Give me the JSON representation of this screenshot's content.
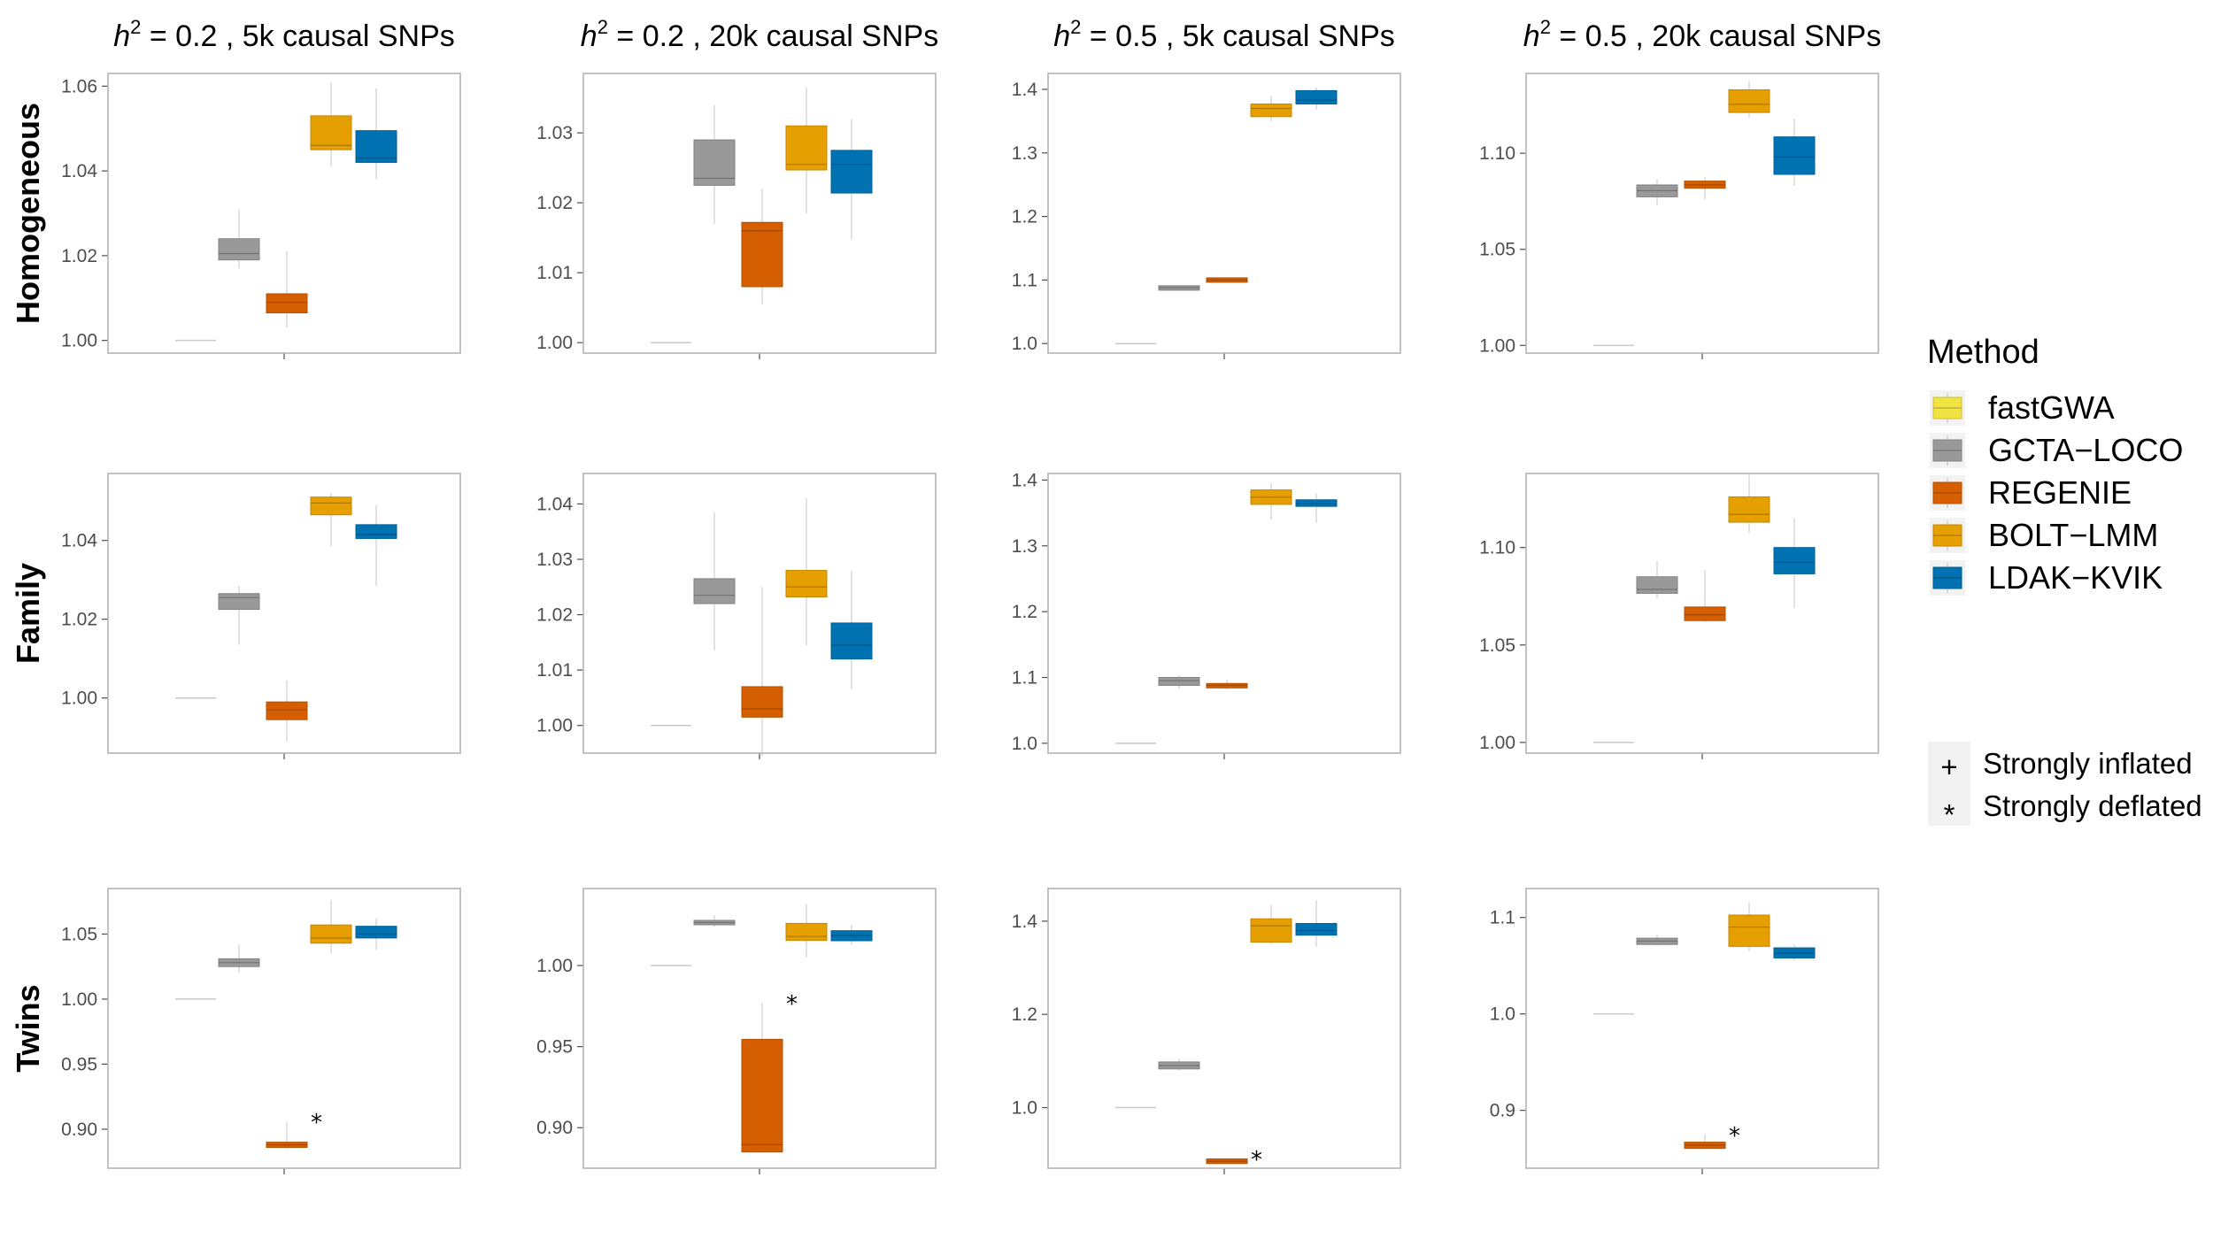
{
  "chart_data": {
    "type": "box",
    "column_titles": [
      {
        "h2": "0.2",
        "snps": "5k causal SNPs"
      },
      {
        "h2": "0.2",
        "snps": "20k causal SNPs"
      },
      {
        "h2": "0.5",
        "snps": "5k causal SNPs"
      },
      {
        "h2": "0.5",
        "snps": "20k causal SNPs"
      }
    ],
    "row_titles": [
      "Homogeneous",
      "Family",
      "Twins"
    ],
    "legend": {
      "title": "Method",
      "methods": [
        {
          "name": "fastGWA",
          "color": "#F0E442"
        },
        {
          "name": "GCTA−LOCO",
          "color": "#999999"
        },
        {
          "name": "REGENIE",
          "color": "#D55E00"
        },
        {
          "name": "BOLT−LMM",
          "color": "#E69F00"
        },
        {
          "name": "LDAK−KVIK",
          "color": "#0072B2"
        }
      ],
      "significance": [
        {
          "symbol": "+",
          "label": "Strongly inflated"
        },
        {
          "symbol": "*",
          "label": "Strongly deflated"
        }
      ]
    },
    "panels": [
      {
        "row": 0,
        "col": 0,
        "ylim": [
          0.997,
          1.063
        ],
        "ticks": [
          "1.00",
          "1.02",
          "1.04",
          "1.06"
        ],
        "boxes": [
          {
            "min": 1.0,
            "q1": 1.0,
            "median": 1.0,
            "q3": 1.0,
            "max": 1.0
          },
          {
            "min": 1.017,
            "q1": 1.019,
            "median": 1.0205,
            "q3": 1.024,
            "max": 1.031
          },
          {
            "min": 1.003,
            "q1": 1.0065,
            "median": 1.009,
            "q3": 1.011,
            "max": 1.021
          },
          {
            "min": 1.041,
            "q1": 1.045,
            "median": 1.046,
            "q3": 1.053,
            "max": 1.061
          },
          {
            "min": 1.038,
            "q1": 1.042,
            "median": 1.043,
            "q3": 1.0495,
            "max": 1.0595
          }
        ],
        "stars": []
      },
      {
        "row": 0,
        "col": 1,
        "ylim": [
          0.9985,
          1.0385
        ],
        "ticks": [
          "1.00",
          "1.01",
          "1.02",
          "1.03"
        ],
        "boxes": [
          {
            "min": 1.0,
            "q1": 1.0,
            "median": 1.0,
            "q3": 1.0,
            "max": 1.0
          },
          {
            "min": 1.017,
            "q1": 1.0225,
            "median": 1.0235,
            "q3": 1.029,
            "max": 1.034
          },
          {
            "min": 1.0055,
            "q1": 1.008,
            "median": 1.016,
            "q3": 1.0172,
            "max": 1.022
          },
          {
            "min": 1.0185,
            "q1": 1.0247,
            "median": 1.0255,
            "q3": 1.031,
            "max": 1.0365
          },
          {
            "min": 1.0148,
            "q1": 1.0214,
            "median": 1.0255,
            "q3": 1.0275,
            "max": 1.032
          }
        ],
        "stars": []
      },
      {
        "row": 0,
        "col": 2,
        "ylim": [
          0.985,
          1.425
        ],
        "ticks": [
          "1.0",
          "1.1",
          "1.2",
          "1.3",
          "1.4"
        ],
        "boxes": [
          {
            "min": 1.0,
            "q1": 1.0,
            "median": 1.0,
            "q3": 1.0,
            "max": 1.0
          },
          {
            "min": 1.085,
            "q1": 1.086,
            "median": 1.088,
            "q3": 1.089,
            "max": 1.09
          },
          {
            "min": 1.097,
            "q1": 1.098,
            "median": 1.1,
            "q3": 1.102,
            "max": 1.104
          },
          {
            "min": 1.35,
            "q1": 1.357,
            "median": 1.37,
            "q3": 1.377,
            "max": 1.39
          },
          {
            "min": 1.368,
            "q1": 1.377,
            "median": 1.383,
            "q3": 1.398,
            "max": 1.403
          }
        ],
        "stars": []
      },
      {
        "row": 0,
        "col": 3,
        "ylim": [
          0.996,
          1.1415
        ],
        "ticks": [
          "1.00",
          "1.05",
          "1.10"
        ],
        "boxes": [
          {
            "min": 1.0,
            "q1": 1.0,
            "median": 1.0,
            "q3": 1.0,
            "max": 1.0
          },
          {
            "min": 1.073,
            "q1": 1.0773,
            "median": 1.0805,
            "q3": 1.0835,
            "max": 1.0865
          },
          {
            "min": 1.076,
            "q1": 1.0818,
            "median": 1.0835,
            "q3": 1.0855,
            "max": 1.0875
          },
          {
            "min": 1.1185,
            "q1": 1.1212,
            "median": 1.1255,
            "q3": 1.133,
            "max": 1.1375
          },
          {
            "min": 1.083,
            "q1": 1.089,
            "median": 1.098,
            "q3": 1.1085,
            "max": 1.118
          }
        ],
        "stars": []
      },
      {
        "row": 1,
        "col": 0,
        "ylim": [
          0.986,
          1.057
        ],
        "ticks": [
          "1.00",
          "1.02",
          "1.04"
        ],
        "boxes": [
          {
            "min": 1.0,
            "q1": 1.0,
            "median": 1.0,
            "q3": 1.0,
            "max": 1.0
          },
          {
            "min": 1.0135,
            "q1": 1.0225,
            "median": 1.0255,
            "q3": 1.0265,
            "max": 1.0285
          },
          {
            "min": 0.989,
            "q1": 0.9945,
            "median": 0.997,
            "q3": 0.999,
            "max": 1.0045
          },
          {
            "min": 1.0385,
            "q1": 1.0465,
            "median": 1.0495,
            "q3": 1.051,
            "max": 1.052
          },
          {
            "min": 1.0285,
            "q1": 1.0405,
            "median": 1.0415,
            "q3": 1.044,
            "max": 1.049
          }
        ],
        "stars": []
      },
      {
        "row": 1,
        "col": 1,
        "ylim": [
          0.995,
          1.0455
        ],
        "ticks": [
          "1.00",
          "1.01",
          "1.02",
          "1.03",
          "1.04"
        ],
        "boxes": [
          {
            "min": 1.0,
            "q1": 1.0,
            "median": 1.0,
            "q3": 1.0,
            "max": 1.0
          },
          {
            "min": 1.0135,
            "q1": 1.022,
            "median": 1.0235,
            "q3": 1.0265,
            "max": 1.0385
          },
          {
            "min": 0.9945,
            "q1": 1.0015,
            "median": 1.003,
            "q3": 1.007,
            "max": 1.025
          },
          {
            "min": 1.0145,
            "q1": 1.0232,
            "median": 1.025,
            "q3": 1.028,
            "max": 1.041
          },
          {
            "min": 1.0065,
            "q1": 1.012,
            "median": 1.0145,
            "q3": 1.0185,
            "max": 1.028
          }
        ],
        "stars": []
      },
      {
        "row": 1,
        "col": 2,
        "ylim": [
          0.985,
          1.41
        ],
        "ticks": [
          "1.0",
          "1.1",
          "1.2",
          "1.3",
          "1.4"
        ],
        "boxes": [
          {
            "min": 1.0,
            "q1": 1.0,
            "median": 1.0,
            "q3": 1.0,
            "max": 1.0
          },
          {
            "min": 1.083,
            "q1": 1.088,
            "median": 1.095,
            "q3": 1.1,
            "max": 1.103
          },
          {
            "min": 1.082,
            "q1": 1.085,
            "median": 1.088,
            "q3": 1.09,
            "max": 1.097
          },
          {
            "min": 1.34,
            "q1": 1.363,
            "median": 1.374,
            "q3": 1.385,
            "max": 1.395
          },
          {
            "min": 1.335,
            "q1": 1.36,
            "median": 1.364,
            "q3": 1.37,
            "max": 1.38
          }
        ],
        "stars": []
      },
      {
        "row": 1,
        "col": 3,
        "ylim": [
          0.9945,
          1.138
        ],
        "ticks": [
          "1.00",
          "1.05",
          "1.10"
        ],
        "boxes": [
          {
            "min": 1.0,
            "q1": 1.0,
            "median": 1.0,
            "q3": 1.0,
            "max": 1.0
          },
          {
            "min": 1.074,
            "q1": 1.0765,
            "median": 1.0785,
            "q3": 1.085,
            "max": 1.093
          },
          {
            "min": 1.0615,
            "q1": 1.0625,
            "median": 1.0655,
            "q3": 1.0695,
            "max": 1.0885
          },
          {
            "min": 1.1075,
            "q1": 1.113,
            "median": 1.117,
            "q3": 1.126,
            "max": 1.137
          },
          {
            "min": 1.069,
            "q1": 1.0865,
            "median": 1.0925,
            "q3": 1.1,
            "max": 1.115
          }
        ],
        "stars": []
      },
      {
        "row": 2,
        "col": 0,
        "ylim": [
          0.87,
          1.085
        ],
        "ticks": [
          "0.90",
          "0.95",
          "1.00",
          "1.05"
        ],
        "boxes": [
          {
            "min": 1.0,
            "q1": 1.0,
            "median": 1.0,
            "q3": 1.0,
            "max": 1.0
          },
          {
            "min": 1.02,
            "q1": 1.025,
            "median": 1.028,
            "q3": 1.031,
            "max": 1.042
          },
          {
            "min": 0.885,
            "q1": 0.886,
            "median": 0.888,
            "q3": 0.89,
            "max": 0.906
          },
          {
            "min": 1.035,
            "q1": 1.043,
            "median": 1.047,
            "q3": 1.057,
            "max": 1.076
          },
          {
            "min": 1.038,
            "q1": 1.047,
            "median": 1.05,
            "q3": 1.056,
            "max": 1.062
          }
        ],
        "stars": [
          2
        ]
      },
      {
        "row": 2,
        "col": 1,
        "ylim": [
          0.875,
          1.0475
        ],
        "ticks": [
          "0.90",
          "0.95",
          "1.00"
        ],
        "boxes": [
          {
            "min": 1.0,
            "q1": 1.0,
            "median": 1.0,
            "q3": 1.0,
            "max": 1.0
          },
          {
            "min": 1.024,
            "q1": 1.0255,
            "median": 1.0265,
            "q3": 1.0275,
            "max": 1.031
          },
          {
            "min": 0.8845,
            "q1": 0.885,
            "median": 0.8895,
            "q3": 0.9545,
            "max": 0.977
          },
          {
            "min": 1.005,
            "q1": 1.0155,
            "median": 1.018,
            "q3": 1.026,
            "max": 1.038
          },
          {
            "min": 1.0125,
            "q1": 1.0153,
            "median": 1.0185,
            "q3": 1.0215,
            "max": 1.025
          }
        ],
        "stars": [
          2
        ]
      },
      {
        "row": 2,
        "col": 2,
        "ylim": [
          0.87,
          1.47
        ],
        "ticks": [
          "1.0",
          "1.2",
          "1.4"
        ],
        "boxes": [
          {
            "min": 1.0,
            "q1": 1.0,
            "median": 1.0,
            "q3": 1.0,
            "max": 1.0
          },
          {
            "min": 1.08,
            "q1": 1.083,
            "median": 1.09,
            "q3": 1.098,
            "max": 1.105
          },
          {
            "min": 0.88,
            "q1": 0.88,
            "median": 0.885,
            "q3": 0.89,
            "max": 0.891
          },
          {
            "min": 1.352,
            "q1": 1.355,
            "median": 1.39,
            "q3": 1.405,
            "max": 1.435
          },
          {
            "min": 1.345,
            "q1": 1.37,
            "median": 1.38,
            "q3": 1.395,
            "max": 1.445
          }
        ],
        "stars": [
          2
        ]
      },
      {
        "row": 2,
        "col": 3,
        "ylim": [
          0.84,
          1.13
        ],
        "ticks": [
          "0.9",
          "1.0",
          "1.1"
        ],
        "boxes": [
          {
            "min": 1.0,
            "q1": 1.0,
            "median": 1.0,
            "q3": 1.0,
            "max": 1.0
          },
          {
            "min": 1.071,
            "q1": 1.072,
            "median": 1.0755,
            "q3": 1.0785,
            "max": 1.0825
          },
          {
            "min": 0.86,
            "q1": 0.8605,
            "median": 0.864,
            "q3": 0.867,
            "max": 0.875
          },
          {
            "min": 1.065,
            "q1": 1.07,
            "median": 1.09,
            "q3": 1.1025,
            "max": 1.115
          },
          {
            "min": 1.055,
            "q1": 1.058,
            "median": 1.063,
            "q3": 1.0685,
            "max": 1.072
          }
        ],
        "stars": [
          2
        ]
      }
    ]
  }
}
